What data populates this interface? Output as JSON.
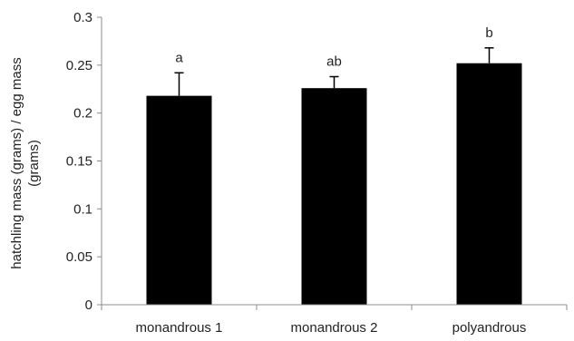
{
  "chart_data": {
    "type": "bar",
    "categories": [
      "monandrous 1",
      "monandrous 2",
      "polyandrous"
    ],
    "values": [
      0.218,
      0.226,
      0.252
    ],
    "error_upper": [
      0.242,
      0.238,
      0.268
    ],
    "significance_letters": [
      "a",
      "ab",
      "b"
    ],
    "title": "",
    "xlabel": "",
    "ylabel_lines": [
      "hatchling mass (grams) / egg mass",
      "(grams)"
    ],
    "ylim": [
      0,
      0.3
    ],
    "yticks": [
      "0",
      "0.05",
      "0.1",
      "0.15",
      "0.2",
      "0.25",
      "0.3"
    ],
    "bar_color": "#000000",
    "grid": false,
    "legend": "none"
  }
}
